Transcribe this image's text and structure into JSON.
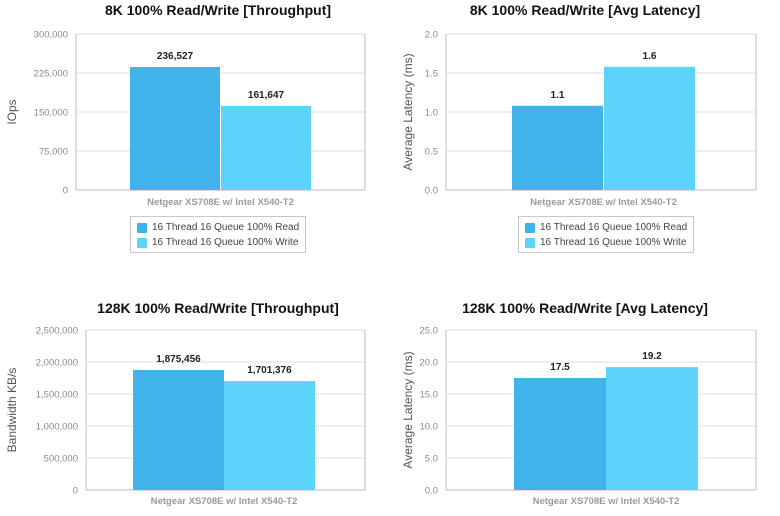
{
  "colors": {
    "read": "#40b4ea",
    "write": "#5cd3fb",
    "grid": "#dcdcdc",
    "axis": "#bdbdbd",
    "tick_text": "#8a8a8a"
  },
  "chart_data": [
    {
      "type": "bar",
      "title": "8K 100% Read/Write [Throughput]",
      "ylabel": "IOps",
      "categories": [
        "Netgear XS708E w/ Intel X540-T2"
      ],
      "yticks": [
        "0",
        "75,000",
        "150,000",
        "225,000",
        "300,000"
      ],
      "ylim": [
        0,
        300000
      ],
      "series": [
        {
          "name": "16 Thread 16 Queue 100% Read",
          "values": [
            236527
          ],
          "labels": [
            "236,527"
          ]
        },
        {
          "name": "16 Thread 16 Queue 100% Write",
          "values": [
            161647
          ],
          "labels": [
            "161,647"
          ]
        }
      ],
      "legend": "below",
      "grid": true
    },
    {
      "type": "bar",
      "title": "8K 100% Read/Write [Avg Latency]",
      "ylabel": "Average Latency (ms)",
      "categories": [
        "Netgear XS708E w/ Intel X540-T2"
      ],
      "yticks": [
        "0.0",
        "0.5",
        "1.0",
        "1.5",
        "2.0"
      ],
      "ylim": [
        0,
        2.0
      ],
      "series": [
        {
          "name": "16 Thread 16 Queue 100% Read",
          "values": [
            1.08
          ],
          "labels": [
            "1.1"
          ]
        },
        {
          "name": "16 Thread 16 Queue 100% Write",
          "values": [
            1.58
          ],
          "labels": [
            "1.6"
          ]
        }
      ],
      "legend": "below",
      "grid": true
    },
    {
      "type": "bar",
      "title": "128K 100% Read/Write [Throughput]",
      "ylabel": "Bandwidth KB/s",
      "categories": [
        "Netgear XS708E w/ Intel X540-T2"
      ],
      "yticks": [
        "0",
        "500,000",
        "1,000,000",
        "1,500,000",
        "2,000,000",
        "2,500,000"
      ],
      "ylim": [
        0,
        2500000
      ],
      "series": [
        {
          "name": "16 Thread 16 Queue 100% Read",
          "values": [
            1875456
          ],
          "labels": [
            "1,875,456"
          ]
        },
        {
          "name": "16 Thread 16 Queue 100% Write",
          "values": [
            1701376
          ],
          "labels": [
            "1,701,376"
          ]
        }
      ],
      "legend": "none",
      "grid": true
    },
    {
      "type": "bar",
      "title": "128K 100% Read/Write [Avg Latency]",
      "ylabel": "Average Latency (ms)",
      "categories": [
        "Netgear XS708E w/ Intel X540-T2"
      ],
      "yticks": [
        "0.0",
        "5.0",
        "10.0",
        "15.0",
        "20.0",
        "25.0"
      ],
      "ylim": [
        0,
        25.0
      ],
      "series": [
        {
          "name": "16 Thread 16 Queue 100% Read",
          "values": [
            17.5
          ],
          "labels": [
            "17.5"
          ]
        },
        {
          "name": "16 Thread 16 Queue 100% Write",
          "values": [
            19.2
          ],
          "labels": [
            "19.2"
          ]
        }
      ],
      "legend": "none",
      "grid": true
    }
  ]
}
